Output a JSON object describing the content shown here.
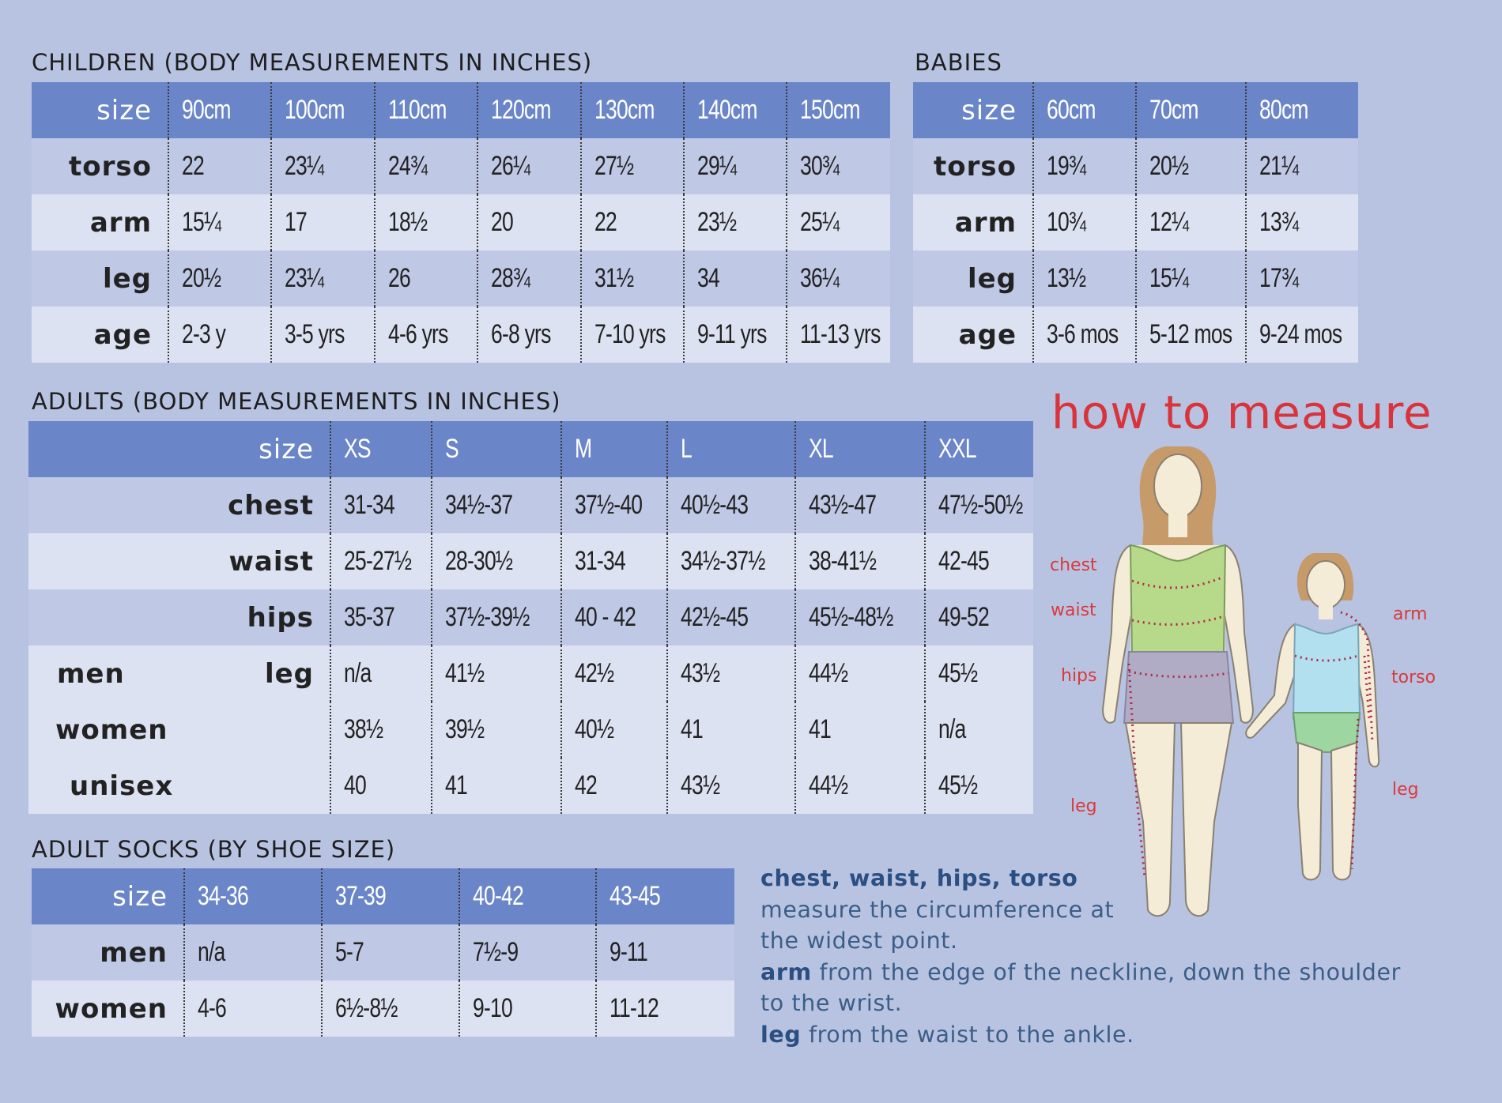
{
  "children": {
    "title": "CHILDREN (BODY MEASUREMENTS IN INCHES)",
    "size_label": "size",
    "sizes": [
      "90cm",
      "100cm",
      "110cm",
      "120cm",
      "130cm",
      "140cm",
      "150cm"
    ],
    "rows": [
      {
        "label": "torso",
        "values": [
          "22",
          "23¼",
          "24¾",
          "26¼",
          "27½",
          "29¼",
          "30¾"
        ]
      },
      {
        "label": "arm",
        "values": [
          "15¼",
          "17",
          "18½",
          "20",
          "22",
          "23½",
          "25¼"
        ]
      },
      {
        "label": "leg",
        "values": [
          "20½",
          "23¼",
          "26",
          "28¾",
          "31½",
          "34",
          "36¼"
        ]
      },
      {
        "label": "age",
        "values": [
          "2-3 y",
          "3-5 yrs",
          "4-6 yrs",
          "6-8 yrs",
          "7-10 yrs",
          "9-11 yrs",
          "11-13 yrs"
        ]
      }
    ]
  },
  "babies": {
    "title": "BABIES",
    "size_label": "size",
    "sizes": [
      "60cm",
      "70cm",
      "80cm"
    ],
    "rows": [
      {
        "label": "torso",
        "values": [
          "19¾",
          "20½",
          "21¼"
        ]
      },
      {
        "label": "arm",
        "values": [
          "10¾",
          "12¼",
          "13¾"
        ]
      },
      {
        "label": "leg",
        "values": [
          "13½",
          "15¼",
          "17¾"
        ]
      },
      {
        "label": "age",
        "values": [
          "3-6 mos",
          "5-12 mos",
          "9-24 mos"
        ]
      }
    ]
  },
  "adults": {
    "title": "ADULTS (BODY MEASUREMENTS IN INCHES)",
    "size_label": "size",
    "sizes": [
      "XS",
      "S",
      "M",
      "L",
      "XL",
      "XXL"
    ],
    "rows": [
      {
        "label": "chest",
        "values": [
          "31-34",
          "34½-37",
          "37½-40",
          "40½-43",
          "43½-47",
          "47½-50½"
        ]
      },
      {
        "label": "waist",
        "values": [
          "25-27½",
          "28-30½",
          "31-34",
          "34½-37½",
          "38-41½",
          "42-45"
        ]
      },
      {
        "label": "hips",
        "values": [
          "35-37",
          "37½-39½",
          "40 - 42",
          "42½-45",
          "45½-48½",
          "49-52"
        ]
      }
    ],
    "leg_label": "leg",
    "leg_rows": [
      {
        "group": "men",
        "values": [
          "n/a",
          "41½",
          "42½",
          "43½",
          "44½",
          "45½"
        ]
      },
      {
        "group": "women",
        "values": [
          "38½",
          "39½",
          "40½",
          "41",
          "41",
          "n/a"
        ]
      },
      {
        "group": "unisex",
        "values": [
          "40",
          "41",
          "42",
          "43½",
          "44½",
          "45½"
        ]
      }
    ]
  },
  "socks": {
    "title": "ADULT SOCKS (BY SHOE SIZE)",
    "size_label": "size",
    "sizes": [
      "34-36",
      "37-39",
      "40-42",
      "43-45"
    ],
    "rows": [
      {
        "label": "men",
        "values": [
          "n/a",
          "5-7",
          "7½-9",
          "9-11"
        ]
      },
      {
        "label": "women",
        "values": [
          "4-6",
          "6½-8½",
          "9-10",
          "11-12"
        ]
      }
    ]
  },
  "how_to_measure": {
    "title": "how to measure",
    "labels": {
      "chest": "chest",
      "waist": "waist",
      "hips": "hips",
      "leg_left": "leg",
      "arm": "arm",
      "torso": "torso",
      "leg_right": "leg"
    },
    "instructions": {
      "l1_bold": "chest, waist, hips, torso",
      "l2": "measure the circumference at",
      "l3": "the widest point.",
      "l4_bold": "arm",
      "l4": " from the edge of the neckline, down the shoulder",
      "l5": "to the wrist.",
      "l6_bold": "leg",
      "l6": " from the waist to the ankle."
    }
  },
  "colors": {
    "header": "#6a86c8",
    "background": "#b8c3e2",
    "accent": "#d9343b",
    "instructions": "#3b5e88"
  }
}
